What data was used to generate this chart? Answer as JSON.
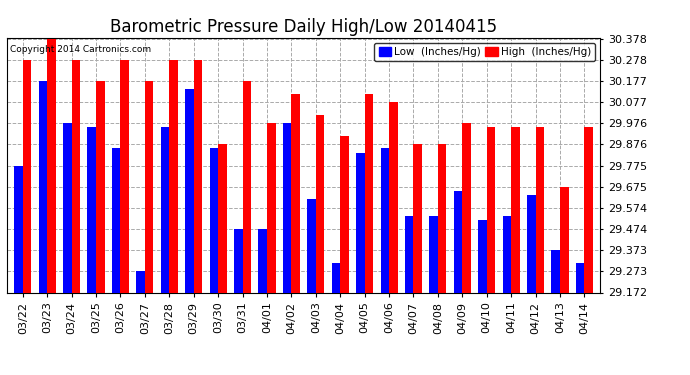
{
  "title": "Barometric Pressure Daily High/Low 20140415",
  "copyright": "Copyright 2014 Cartronics.com",
  "legend_low": "Low  (Inches/Hg)",
  "legend_high": "High  (Inches/Hg)",
  "dates": [
    "03/22",
    "03/23",
    "03/24",
    "03/25",
    "03/26",
    "03/27",
    "03/28",
    "03/29",
    "03/30",
    "03/31",
    "04/01",
    "04/02",
    "04/03",
    "04/04",
    "04/05",
    "04/06",
    "04/07",
    "04/08",
    "04/09",
    "04/10",
    "04/11",
    "04/12",
    "04/13",
    "04/14"
  ],
  "low": [
    29.775,
    30.177,
    29.976,
    29.956,
    29.856,
    29.273,
    29.956,
    30.137,
    29.856,
    29.473,
    29.473,
    29.976,
    29.614,
    29.313,
    29.836,
    29.856,
    29.534,
    29.534,
    29.654,
    29.514,
    29.534,
    29.634,
    29.373,
    29.313
  ],
  "high": [
    30.278,
    30.378,
    30.278,
    30.177,
    30.278,
    30.177,
    30.278,
    30.278,
    29.876,
    30.177,
    29.976,
    30.117,
    30.017,
    29.916,
    30.117,
    30.077,
    29.876,
    29.876,
    29.976,
    29.956,
    29.956,
    29.956,
    29.675,
    29.956
  ],
  "ylim_min": 29.172,
  "ylim_max": 30.378,
  "yticks": [
    29.172,
    29.273,
    29.373,
    29.474,
    29.574,
    29.675,
    29.775,
    29.876,
    29.976,
    30.077,
    30.177,
    30.278,
    30.378
  ],
  "bar_color_low": "#0000ff",
  "bar_color_high": "#ff0000",
  "bg_color": "#ffffff",
  "grid_color": "#aaaaaa",
  "title_fontsize": 12,
  "tick_fontsize": 8,
  "legend_fontsize": 7.5,
  "copyright_fontsize": 6.5
}
